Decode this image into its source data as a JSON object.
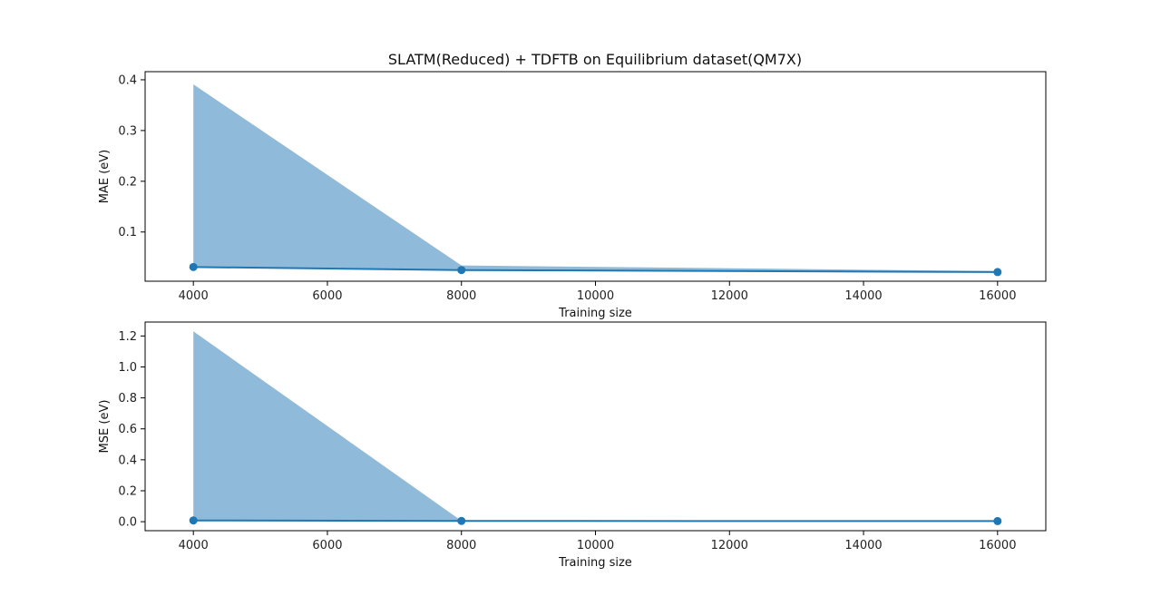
{
  "figure": {
    "title": "SLATM(Reduced) + TDFTB on Equilibrium dataset(QM7X)"
  },
  "colors": {
    "line": "#1f77b4",
    "band": "#8fbad9",
    "axes": "#000000"
  },
  "chart_data": [
    {
      "type": "line",
      "title": "SLATM(Reduced) + TDFTB on Equilibrium dataset(QM7X)",
      "xlabel": "Training size",
      "ylabel": "MAE (eV)",
      "x": [
        4000,
        8000,
        16000
      ],
      "series": [
        {
          "values": [
            0.031,
            0.025,
            0.021
          ],
          "band_upper": [
            0.391,
            0.034,
            0.023
          ],
          "band_lower": [
            0.031,
            0.025,
            0.021
          ]
        }
      ],
      "xticks": [
        4000,
        6000,
        8000,
        10000,
        12000,
        14000,
        16000
      ],
      "yticks": [
        0.1,
        0.2,
        0.3,
        0.4
      ],
      "ytick_labels": [
        "0.1",
        "0.2",
        "0.3",
        "0.4"
      ],
      "xlim": [
        3280,
        16720
      ],
      "ylim": [
        0.003,
        0.416
      ],
      "grid": false,
      "legend": "none"
    },
    {
      "type": "line",
      "title": "",
      "xlabel": "Training size",
      "ylabel": "MSE (eV)",
      "x": [
        4000,
        8000,
        16000
      ],
      "series": [
        {
          "values": [
            0.008,
            0.005,
            0.004
          ],
          "band_upper": [
            1.23,
            0.006,
            0.005
          ],
          "band_lower": [
            0.008,
            0.005,
            0.004
          ]
        }
      ],
      "xticks": [
        4000,
        6000,
        8000,
        10000,
        12000,
        14000,
        16000
      ],
      "yticks": [
        0.0,
        0.2,
        0.4,
        0.6,
        0.8,
        1.0,
        1.2
      ],
      "ytick_labels": [
        "0.0",
        "0.2",
        "0.4",
        "0.6",
        "0.8",
        "1.0",
        "1.2"
      ],
      "xlim": [
        3280,
        16720
      ],
      "ylim": [
        -0.058,
        1.29
      ],
      "grid": false,
      "legend": "none"
    }
  ]
}
